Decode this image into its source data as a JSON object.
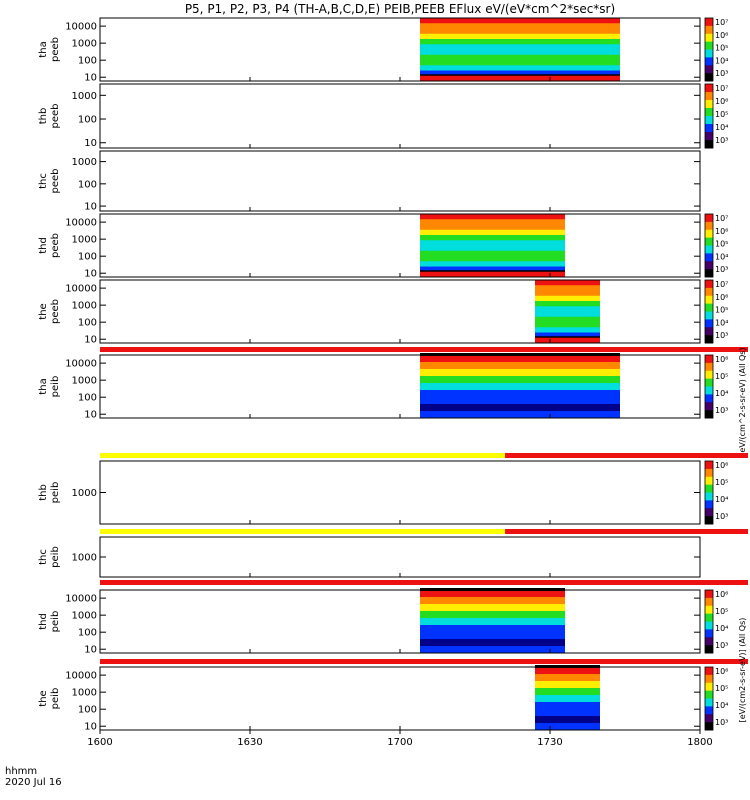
{
  "title": "P5, P1, P2, P3, P4 (TH-A,B,C,D,E) PEIB,PEEB EFlux eV/(eV*cm^2*sec*sr)",
  "time_axis": {
    "label_line1": "hhmm",
    "label_line2": "2020 Jul 16",
    "ticks": [
      "1600",
      "1630",
      "1700",
      "1730",
      "1800"
    ],
    "range_minutes": [
      0,
      120
    ]
  },
  "colorbar_labels": {
    "electron": "eV/(cm^2-s-sr-eV) (All Qs)",
    "ion": "[eV/(cm2-s-sr-eV)] (All Qs)"
  },
  "chart_data": [
    {
      "type": "heatmap",
      "panel": "tha_peeb",
      "ylabel": [
        "tha",
        "peeb"
      ],
      "y_ticks": [
        "10",
        "100",
        "1000",
        "10000"
      ],
      "ylim": [
        6,
        30000
      ],
      "scale": "log",
      "data_interval_min": [
        64,
        104
      ],
      "cbar_ticks": [
        "10^3",
        "10^4",
        "10^5",
        "10^6",
        "10^7"
      ]
    },
    {
      "type": "heatmap",
      "panel": "thb_peeb",
      "ylabel": [
        "thb",
        "peeb"
      ],
      "y_ticks": [
        "10",
        "100",
        "1000"
      ],
      "ylim": [
        6,
        3000
      ],
      "scale": "log",
      "data_interval_min": null,
      "cbar_ticks": [
        "10^3",
        "10^4",
        "10^5",
        "10^6",
        "10^7"
      ]
    },
    {
      "type": "heatmap",
      "panel": "thc_peeb",
      "ylabel": [
        "thc",
        "peeb"
      ],
      "y_ticks": [
        "10",
        "100",
        "1000"
      ],
      "ylim": [
        6,
        3000
      ],
      "scale": "log",
      "data_interval_min": null,
      "cbar_ticks": []
    },
    {
      "type": "heatmap",
      "panel": "thd_peeb",
      "ylabel": [
        "thd",
        "peeb"
      ],
      "y_ticks": [
        "10",
        "100",
        "1000",
        "10000"
      ],
      "ylim": [
        6,
        30000
      ],
      "scale": "log",
      "data_interval_min": [
        64,
        93
      ],
      "cbar_ticks": [
        "10^3",
        "10^4",
        "10^5",
        "10^6",
        "10^7"
      ]
    },
    {
      "type": "heatmap",
      "panel": "the_peeb",
      "ylabel": [
        "the",
        "peeb"
      ],
      "y_ticks": [
        "10",
        "100",
        "1000",
        "10000"
      ],
      "ylim": [
        6,
        30000
      ],
      "scale": "log",
      "data_interval_min": [
        87,
        100
      ],
      "cbar_ticks": [
        "10^3",
        "10^4",
        "10^5",
        "10^6",
        "10^7"
      ]
    },
    {
      "type": "heatmap",
      "panel": "tha_peib",
      "ylabel": [
        "tha",
        "peib"
      ],
      "y_ticks": [
        "10",
        "100",
        "1000",
        "10000"
      ],
      "ylim": [
        6,
        30000
      ],
      "scale": "log",
      "data_interval_min": [
        64,
        104
      ],
      "cbar_ticks": [
        "10^3",
        "10^4",
        "10^5",
        "10^6"
      ]
    },
    {
      "type": "heatmap",
      "panel": "thb_peib",
      "ylabel": [
        "thb",
        "peib"
      ],
      "y_ticks": [
        "1000"
      ],
      "ylim": [
        100,
        10000
      ],
      "scale": "log",
      "data_interval_min": null,
      "cbar_ticks": [
        "10^3",
        "10^4",
        "10^5",
        "10^6"
      ]
    },
    {
      "type": "heatmap",
      "panel": "thc_peib",
      "ylabel": [
        "thc",
        "peib"
      ],
      "y_ticks": [
        "1000"
      ],
      "ylim": [
        100,
        10000
      ],
      "scale": "log",
      "data_interval_min": null,
      "cbar_ticks": []
    },
    {
      "type": "heatmap",
      "panel": "thd_peib",
      "ylabel": [
        "thd",
        "peib"
      ],
      "y_ticks": [
        "10",
        "100",
        "1000",
        "10000"
      ],
      "ylim": [
        6,
        30000
      ],
      "scale": "log",
      "data_interval_min": [
        64,
        93
      ],
      "cbar_ticks": [
        "10^3",
        "10^4",
        "10^5",
        "10^6"
      ]
    },
    {
      "type": "heatmap",
      "panel": "the_peib",
      "ylabel": [
        "the",
        "peib"
      ],
      "y_ticks": [
        "10",
        "100",
        "1000",
        "10000"
      ],
      "ylim": [
        6,
        30000
      ],
      "scale": "log",
      "data_interval_min": [
        87,
        100
      ],
      "cbar_ticks": [
        "10^3",
        "10^4",
        "10^5",
        "10^6"
      ]
    }
  ],
  "colors": {
    "red": "#ee1111",
    "orange": "#ff8800",
    "yellow": "#ffee00",
    "green": "#22dd22",
    "cyan": "#00dddd",
    "blue": "#0033ff",
    "darkblue": "#000088",
    "flag_yellow": "#ffff00"
  }
}
